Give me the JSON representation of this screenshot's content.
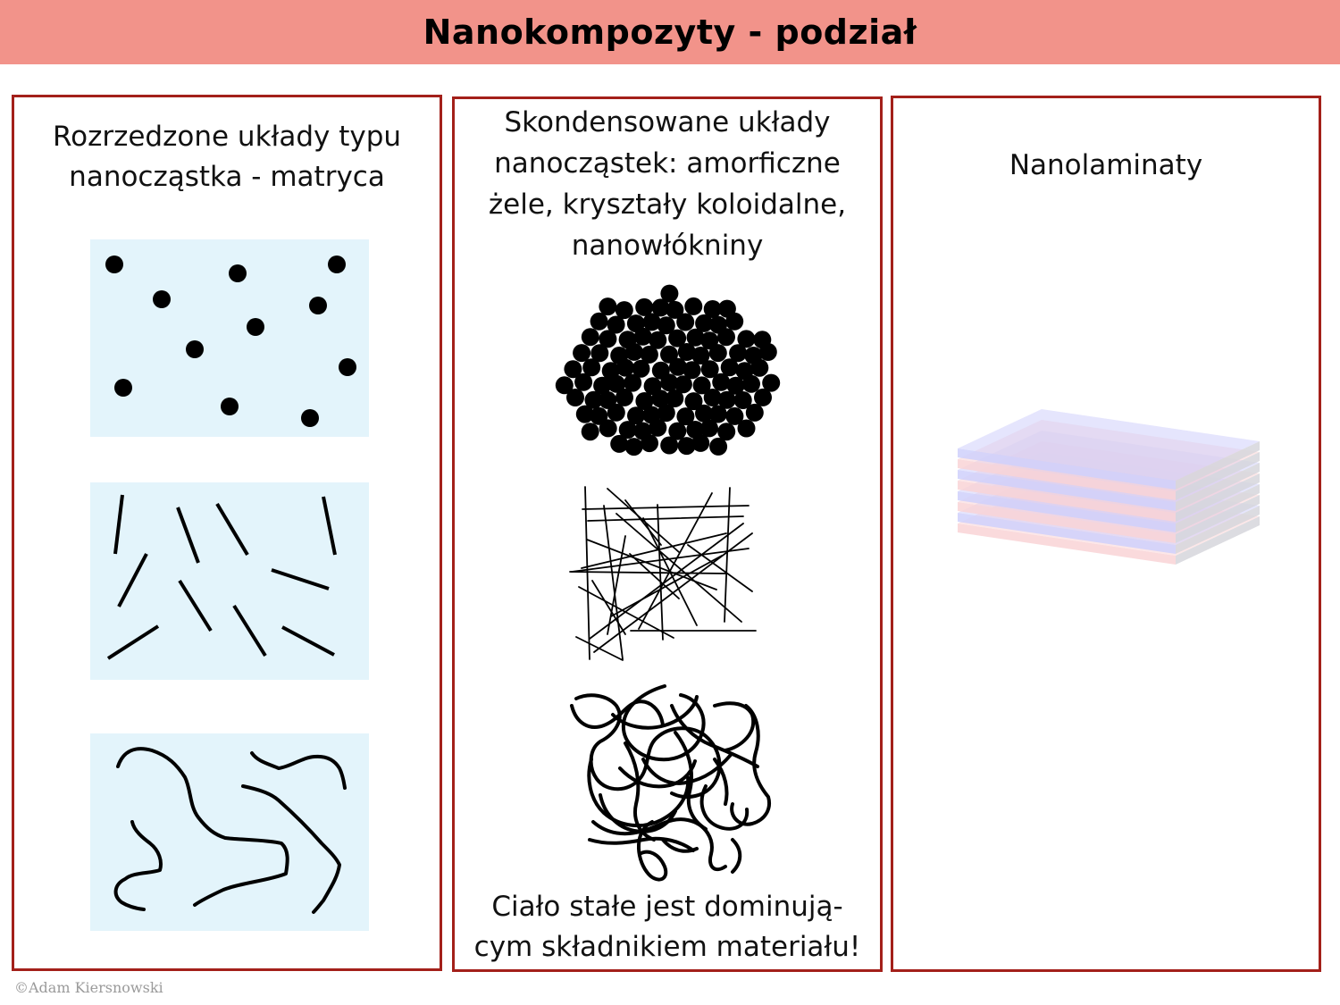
{
  "title": "Nanokompozyty - podział",
  "panels": {
    "dilute": {
      "heading_line1": "Rozrzedzone układy typu",
      "heading_line2": "nanocząstka - matryca"
    },
    "condensed": {
      "heading_line1": "Skondensowane układy",
      "heading_line2": "nanocząstek: amorficzne",
      "heading_line3": "żele, kryształy koloidalne,",
      "heading_line4": "nanowłókniny",
      "note_line1": "Ciało stałe jest dominują-",
      "note_line2": "cym składnikiem materiału!"
    },
    "laminates": {
      "heading": "Nanolaminaty"
    }
  },
  "copyright": "©Adam Kiersnowski",
  "colors": {
    "title_bar": "#f2938a",
    "panel_border": "#a3201a",
    "matrix_fill": "#e3f4fb",
    "layer_blue": "#cfd0fb",
    "layer_pink": "#f9d4d6"
  },
  "icons": [
    "dispersed-particles",
    "dispersed-rods",
    "dispersed-fibers",
    "packed-particles",
    "fiber-network",
    "tangled-fibers",
    "layer-stack"
  ]
}
